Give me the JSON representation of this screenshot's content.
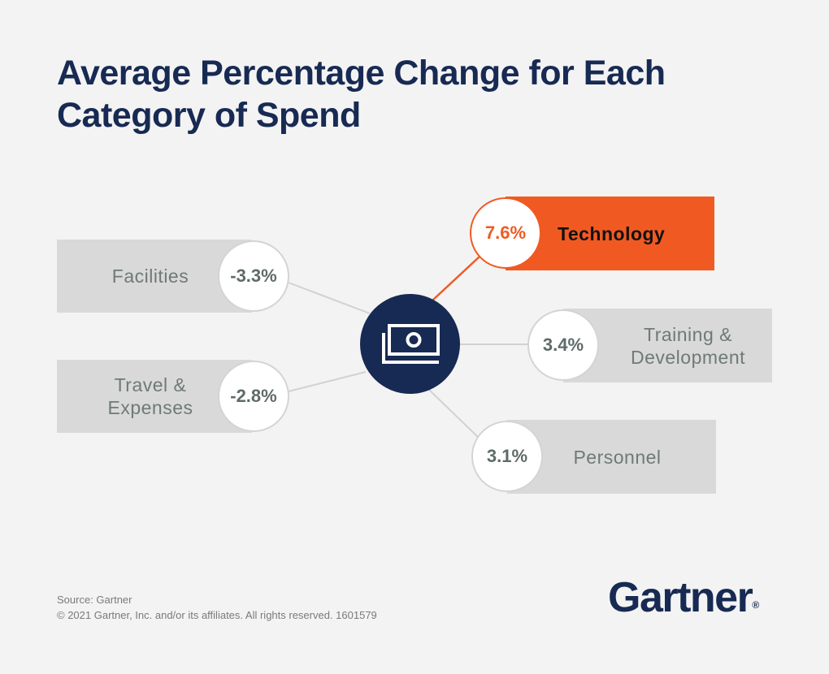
{
  "title": "Average Percentage Change for Each Category of Spend",
  "hub": {
    "icon": "money-bills-icon"
  },
  "categories": [
    {
      "label_lines": [
        "Facilities"
      ],
      "value": "-3.3%",
      "highlight": false
    },
    {
      "label_lines": [
        "Travel &",
        "Expenses"
      ],
      "value": "-2.8%",
      "highlight": false
    },
    {
      "label_lines": [
        "Technology"
      ],
      "value": "7.6%",
      "highlight": true
    },
    {
      "label_lines": [
        "Training &",
        "Development"
      ],
      "value": "3.4%",
      "highlight": false
    },
    {
      "label_lines": [
        "Personnel"
      ],
      "value": "3.1%",
      "highlight": false
    }
  ],
  "footer": {
    "source": "Source: Gartner",
    "copyright": "© 2021 Gartner, Inc. and/or its affiliates. All rights reserved. 1601579"
  },
  "logo": {
    "text": "Gartner",
    "mark": "®"
  },
  "colors": {
    "navy": "#172a53",
    "highlight_orange": "#f05a22",
    "box_gray": "#d9d9d9",
    "background": "#f3f3f3",
    "connector_gray": "#d2d2d2"
  }
}
